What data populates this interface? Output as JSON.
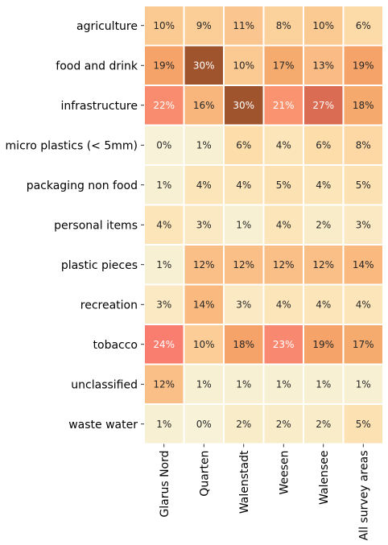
{
  "chart_data": {
    "type": "heatmap",
    "rows": [
      "agriculture",
      "food and drink",
      "infrastructure",
      "micro plastics (< 5mm)",
      "packaging non food",
      "personal items",
      "plastic pieces",
      "recreation",
      "tobacco",
      "unclassified",
      "waste water"
    ],
    "columns": [
      "Glarus Nord",
      "Quarten",
      "Walenstadt",
      "Weesen",
      "Walensee",
      "All survey areas"
    ],
    "values": [
      [
        10,
        9,
        11,
        8,
        10,
        6
      ],
      [
        19,
        30,
        10,
        17,
        13,
        19
      ],
      [
        22,
        16,
        30,
        21,
        27,
        18
      ],
      [
        0,
        1,
        6,
        4,
        6,
        8
      ],
      [
        1,
        4,
        4,
        5,
        4,
        5
      ],
      [
        4,
        3,
        1,
        4,
        2,
        3
      ],
      [
        1,
        12,
        12,
        12,
        12,
        14
      ],
      [
        3,
        14,
        3,
        4,
        4,
        4
      ],
      [
        24,
        10,
        18,
        23,
        19,
        17
      ],
      [
        12,
        1,
        1,
        1,
        1,
        1
      ],
      [
        1,
        0,
        2,
        2,
        2,
        5
      ]
    ],
    "labels": [
      [
        "10%",
        "9%",
        "11%",
        "8%",
        "10%",
        "6%"
      ],
      [
        "19%",
        "30%",
        "10%",
        "17%",
        "13%",
        "19%"
      ],
      [
        "22%",
        "16%",
        "30%",
        "21%",
        "27%",
        "18%"
      ],
      [
        "0%",
        "1%",
        "6%",
        "4%",
        "6%",
        "8%"
      ],
      [
        "1%",
        "4%",
        "4%",
        "5%",
        "4%",
        "5%"
      ],
      [
        "4%",
        "3%",
        "1%",
        "4%",
        "2%",
        "3%"
      ],
      [
        "1%",
        "12%",
        "12%",
        "12%",
        "12%",
        "14%"
      ],
      [
        "3%",
        "14%",
        "3%",
        "4%",
        "4%",
        "4%"
      ],
      [
        "24%",
        "10%",
        "18%",
        "23%",
        "19%",
        "17%"
      ],
      [
        "12%",
        "1%",
        "1%",
        "1%",
        "1%",
        "1%"
      ],
      [
        "1%",
        "0%",
        "2%",
        "2%",
        "2%",
        "5%"
      ]
    ],
    "cell_colors": [
      [
        "#fbca93",
        "#fbcd97",
        "#fac58f",
        "#fcd29c",
        "#fbca93",
        "#fddba9"
      ],
      [
        "#f5a368",
        "#9f542e",
        "#fbca93",
        "#f6ab6e",
        "#fabc84",
        "#f5a368"
      ],
      [
        "#f98c6e",
        "#f8b67d",
        "#9f542e",
        "#f99370",
        "#d96c52",
        "#f6a96c"
      ],
      [
        "#f7f2d8",
        "#f7f0d3",
        "#fddeab",
        "#fce5b8",
        "#fddeab",
        "#fdd7a4"
      ],
      [
        "#f7f0d3",
        "#fce5b8",
        "#fce5b8",
        "#fce2b3",
        "#fce5b8",
        "#fce2b3"
      ],
      [
        "#fce5b8",
        "#fae9c2",
        "#f7f0d3",
        "#fce5b8",
        "#f9ecc8",
        "#fae9c2"
      ],
      [
        "#f7f0d3",
        "#fabe87",
        "#fabe87",
        "#fabe87",
        "#fabe87",
        "#f9b97f"
      ],
      [
        "#fae9c2",
        "#f9b97f",
        "#fae9c2",
        "#fce5b8",
        "#fce5b8",
        "#fce5b8"
      ],
      [
        "#fa7e6f",
        "#fccd97",
        "#f5a368",
        "#f98870",
        "#f5a368",
        "#f6ab6e"
      ],
      [
        "#fabe87",
        "#f7f0d3",
        "#f7f0d3",
        "#f7f0d3",
        "#f7f0d3",
        "#f7f0d3"
      ],
      [
        "#f7f0d3",
        "#f7f2d8",
        "#f9ecc8",
        "#f9ecc8",
        "#f9ecc8",
        "#fce2b3"
      ]
    ],
    "light_text_threshold": 20,
    "dark_text_color": "#262626",
    "light_text_color": "#ffffff",
    "grid_line_color": "#ffffff",
    "colorbar": false
  }
}
